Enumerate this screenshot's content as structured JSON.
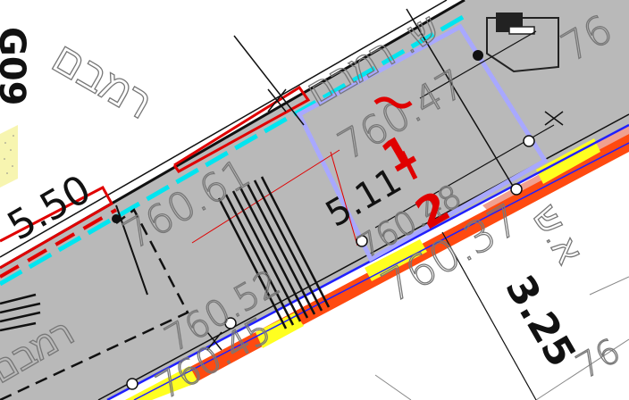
{
  "labels": {
    "sheet_code": "G09",
    "dim_left": "5.50",
    "dim_center": "5.11",
    "dim_right": "3.25",
    "elev_1": "760.61",
    "elev_2": "760.47",
    "elev_3": "760.48",
    "elev_4": "760.37",
    "elev_5": "760.52",
    "elev_6": "760.45",
    "elev_7": "76",
    "elev_8": "76",
    "red_mark_1": "1",
    "red_mark_2": "2",
    "hebrew_street": "ש. רמבם",
    "hebrew_top": "רמבם",
    "hebrew_bottom": "רמבם",
    "hebrew_right": "א.ש"
  },
  "colors": {
    "road_gray": "#b9b9b9",
    "cyan_line": "#00e5f0",
    "red_outline": "#e00000",
    "lavender_box": "#a8a8ff",
    "blue_line": "#2020ff",
    "orange_band": "#ff4a10",
    "yellow_band": "#ffff20",
    "pink_band": "#f0a090"
  }
}
